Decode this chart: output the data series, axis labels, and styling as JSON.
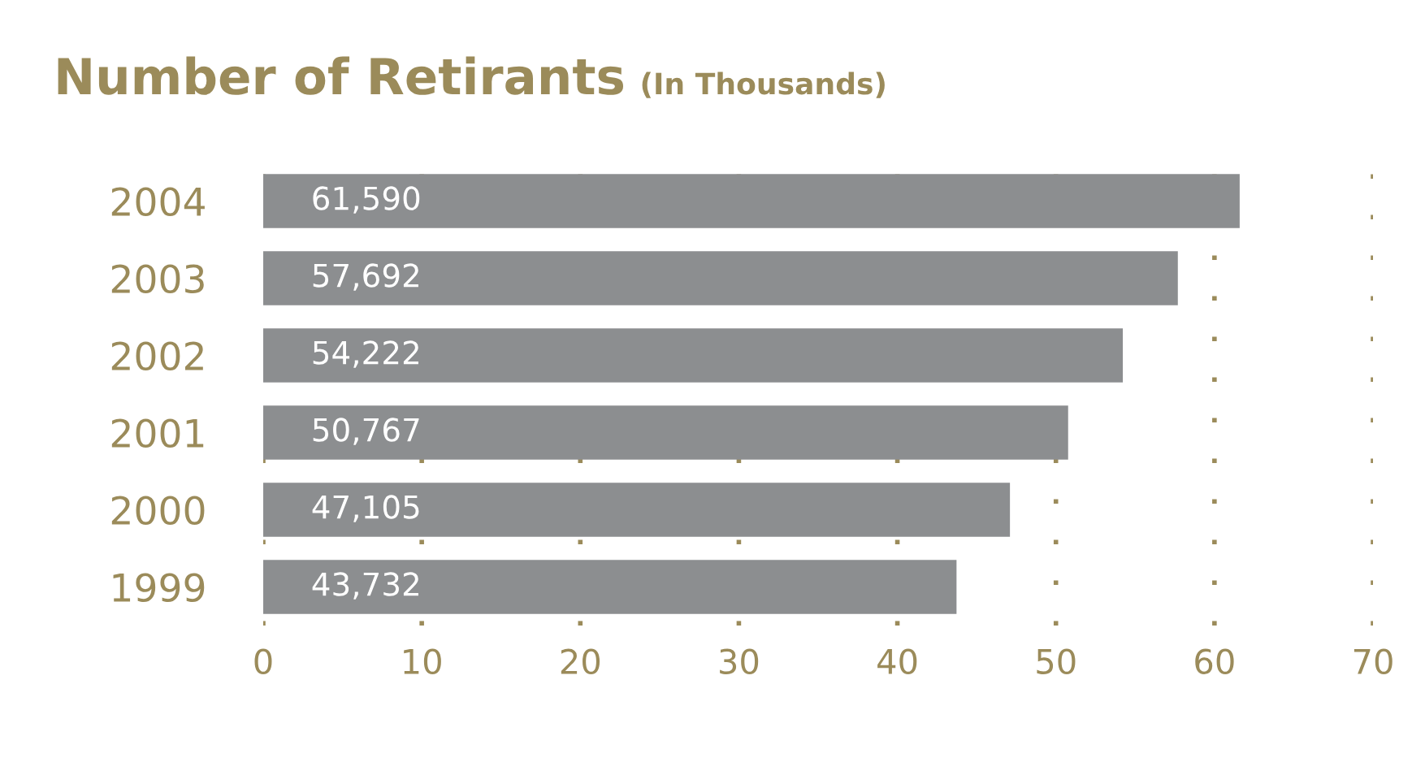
{
  "chart_data": {
    "type": "bar",
    "orientation": "horizontal",
    "title": "Number of Retirants",
    "subtitle": "(In Thousands)",
    "categories": [
      "2004",
      "2003",
      "2002",
      "2001",
      "2000",
      "1999"
    ],
    "values": [
      61.59,
      57.69,
      54.22,
      50.77,
      47.1,
      43.73
    ],
    "annotations": [
      {
        "text": "61,590",
        "y": "2004"
      },
      {
        "text": "57,692",
        "y": "2003"
      },
      {
        "text": "54,222",
        "y": "2002"
      },
      {
        "text": "50,767",
        "y": "2001"
      },
      {
        "text": "47,105",
        "y": "2000"
      },
      {
        "text": "43,732",
        "y": "1999"
      }
    ],
    "color": "#8c8e90",
    "xlim": [
      0,
      70
    ],
    "xticks": [
      0,
      10,
      20,
      30,
      40,
      50,
      60,
      70
    ],
    "grid": "x",
    "legend": false
  }
}
